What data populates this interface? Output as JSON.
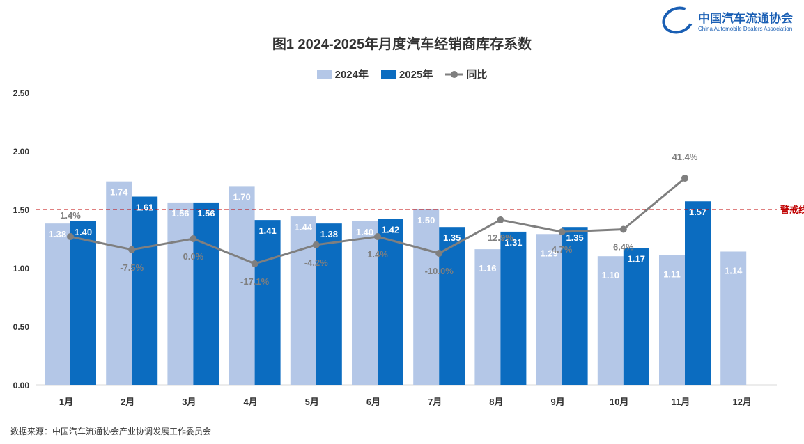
{
  "logo": {
    "cn": "中国汽车流通协会",
    "en": "China Automobile Dealers Association"
  },
  "chart_data": {
    "type": "bar",
    "title": "图1  2024-2025年月度汽车经销商库存系数",
    "categories": [
      "1月",
      "2月",
      "3月",
      "4月",
      "5月",
      "6月",
      "7月",
      "8月",
      "9月",
      "10月",
      "11月",
      "12月"
    ],
    "series": [
      {
        "name": "2024年",
        "type": "bar",
        "color": "#b4c7e7",
        "values": [
          1.38,
          1.74,
          1.56,
          1.7,
          1.44,
          1.4,
          1.5,
          1.16,
          1.29,
          1.1,
          1.11,
          1.14
        ],
        "labels": [
          "1.38",
          "1.74",
          "1.56",
          "1.70",
          "1.44",
          "1.40",
          "1.50",
          "1.16",
          "1.29",
          "1.10",
          "1.11",
          "1.14"
        ]
      },
      {
        "name": "2025年",
        "type": "bar",
        "color": "#0b6cc0",
        "values": [
          1.4,
          1.61,
          1.56,
          1.41,
          1.38,
          1.42,
          1.35,
          1.31,
          1.35,
          1.17,
          1.57,
          null
        ],
        "labels": [
          "1.40",
          "1.61",
          "1.56",
          "1.41",
          "1.38",
          "1.42",
          "1.35",
          "1.31",
          "1.35",
          "1.17",
          "1.57",
          ""
        ]
      },
      {
        "name": "同比",
        "type": "line",
        "color": "#7f7f7f",
        "values": [
          1.4,
          -7.5,
          0.0,
          -17.1,
          -4.2,
          1.4,
          -10.0,
          12.9,
          4.7,
          6.4,
          41.4,
          null
        ],
        "labels": [
          "1.4%",
          "-7.5%",
          "0.0%",
          "-17.1%",
          "-4.2%",
          "1.4%",
          "-10.0%",
          "12.9%",
          "4.7%",
          "6.4%",
          "41.4%",
          ""
        ]
      }
    ],
    "ylim": [
      0,
      2.5
    ],
    "yticks": [
      "0.00",
      "0.50",
      "1.00",
      "1.50",
      "2.00",
      "2.50"
    ],
    "y2lim": [
      -100,
      100
    ],
    "grid": false,
    "legend": "top",
    "reference_line": {
      "value": 1.5,
      "label": "警戒线",
      "color": "#c00000"
    }
  },
  "source": "数据来源：中国汽车流通协会产业协调发展工作委员会"
}
